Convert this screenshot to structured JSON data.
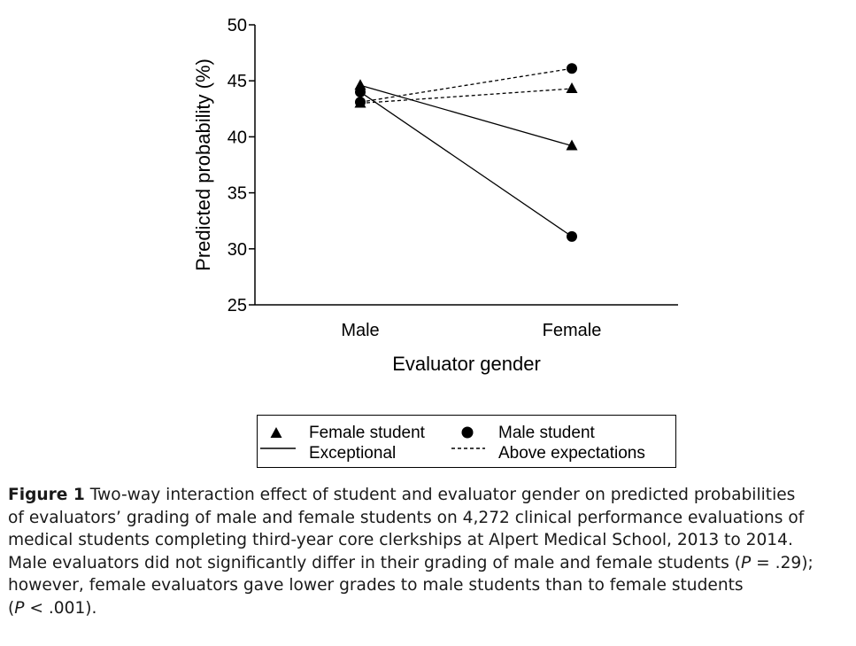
{
  "chart_data": {
    "type": "line",
    "ylabel": "Predicted probability (%)",
    "xlabel": "Evaluator gender",
    "categories": [
      "Male",
      "Female"
    ],
    "ylim": [
      25,
      50
    ],
    "yticks": [
      25,
      30,
      35,
      40,
      45,
      50
    ],
    "series": [
      {
        "name": "Female student – Exceptional",
        "student": "Female student",
        "grade": "Exceptional",
        "marker": "triangle",
        "line": "solid",
        "values": [
          44.6,
          39.2
        ]
      },
      {
        "name": "Male student – Exceptional",
        "student": "Male student",
        "grade": "Exceptional",
        "marker": "circle",
        "line": "solid",
        "values": [
          44.0,
          31.1
        ]
      },
      {
        "name": "Female student – Above expectations",
        "student": "Female student",
        "grade": "Above expectations",
        "marker": "triangle",
        "line": "dashed",
        "values": [
          43.0,
          44.3
        ]
      },
      {
        "name": "Male student – Above expectations",
        "student": "Male student",
        "grade": "Above expectations",
        "marker": "circle",
        "line": "dashed",
        "values": [
          43.1,
          46.1
        ]
      }
    ],
    "legend": {
      "female_student": "Female student",
      "male_student": "Male student",
      "exceptional": "Exceptional",
      "above_expectations": "Above expectations"
    }
  },
  "caption": {
    "label": "Figure 1",
    "lines": [
      " Two-way interaction effect of student and evaluator gender on predicted probabilities",
      "of evaluators’ grading of male and female students on 4,272 clinical performance evaluations of",
      "medical students completing third-year core clerkships at Alpert Medical School, 2013 to 2014."
    ],
    "line4_a": "Male evaluators did not significantly differ in their grading of male and female students (",
    "p1": "P",
    "line4_b": " = .29);",
    "line5": "however, female evaluators gave lower grades to male students than to female students",
    "line6_a": "(",
    "p2": "P",
    "line6_b": " < .001)."
  }
}
